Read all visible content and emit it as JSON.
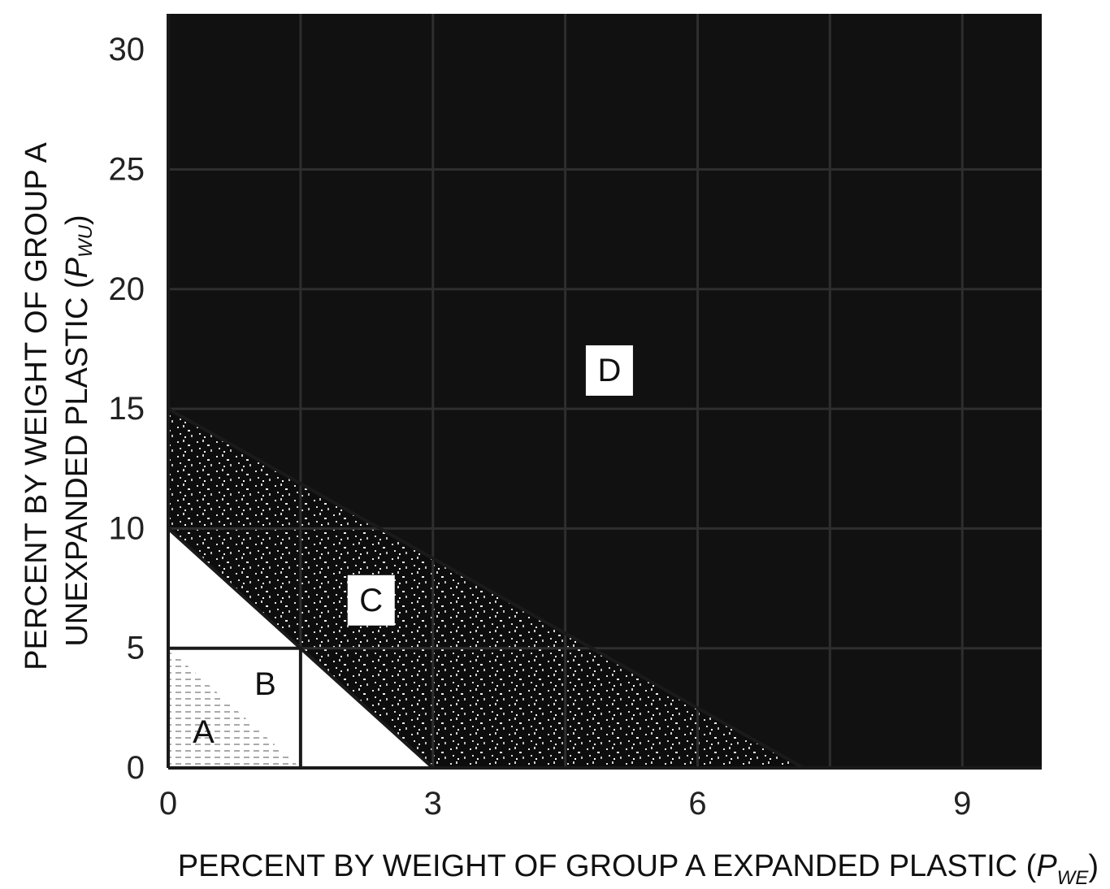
{
  "chart_data": {
    "type": "area",
    "xlabel": "PERCENT BY WEIGHT OF GROUP A EXPANDED PLASTIC",
    "xlabel_symbol": "P",
    "xlabel_subscript": "WE",
    "ylabel_line1": "PERCENT BY WEIGHT OF GROUP A",
    "ylabel_line2": "UNEXPANDED PLASTIC",
    "ylabel_symbol": "P",
    "ylabel_subscript": "WU",
    "xlim": [
      0,
      9.9
    ],
    "ylim": [
      0,
      31.5
    ],
    "x_ticks": [
      0,
      3,
      6,
      9
    ],
    "y_ticks": [
      0,
      5,
      10,
      15,
      20,
      25,
      30
    ],
    "x_tick_labels": [
      "0",
      "3",
      "6",
      "9"
    ],
    "y_tick_labels": [
      "0",
      "5",
      "10",
      "15",
      "20",
      "25",
      "30"
    ],
    "grid": true,
    "grid_x": [
      1.5,
      3,
      4.5,
      6,
      7.5,
      9
    ],
    "grid_y": [
      5,
      10,
      15,
      20,
      25
    ],
    "regions": [
      {
        "name": "A",
        "label": "A",
        "label_at": [
          0.4,
          1.5
        ],
        "polygon": [
          [
            0,
            0
          ],
          [
            1.5,
            0
          ],
          [
            0,
            5
          ]
        ],
        "fill": "hatched"
      },
      {
        "name": "B",
        "label": "B",
        "label_at": [
          1.1,
          3.5
        ],
        "polygon": [
          [
            0,
            0
          ],
          [
            3,
            0
          ],
          [
            0,
            10
          ]
        ],
        "fill": "white"
      },
      {
        "name": "C",
        "label": "C",
        "label_at": [
          2.3,
          7
        ],
        "polygon": [
          [
            0,
            10
          ],
          [
            3,
            0
          ],
          [
            7.2,
            0
          ],
          [
            0,
            15
          ]
        ],
        "fill": "speckled"
      },
      {
        "name": "D",
        "label": "D",
        "label_at": [
          5,
          16.6
        ],
        "polygon": [
          [
            0,
            15
          ],
          [
            7.2,
            0
          ],
          [
            9.9,
            0
          ],
          [
            9.9,
            31.5
          ],
          [
            0,
            31.5
          ]
        ],
        "fill": "black"
      }
    ],
    "boundaries": [
      {
        "from": [
          0,
          5
        ],
        "to": [
          1.5,
          5
        ]
      },
      {
        "from": [
          1.5,
          0
        ],
        "to": [
          1.5,
          5
        ]
      },
      {
        "from": [
          0,
          10
        ],
        "to": [
          3,
          0
        ]
      },
      {
        "from": [
          0,
          15
        ],
        "to": [
          7.2,
          0
        ]
      }
    ],
    "colors": {
      "region_dark": "#111111",
      "grid_dark": "#2e2e2e",
      "boundary": "#1a1a1a",
      "white": "#ffffff"
    }
  }
}
